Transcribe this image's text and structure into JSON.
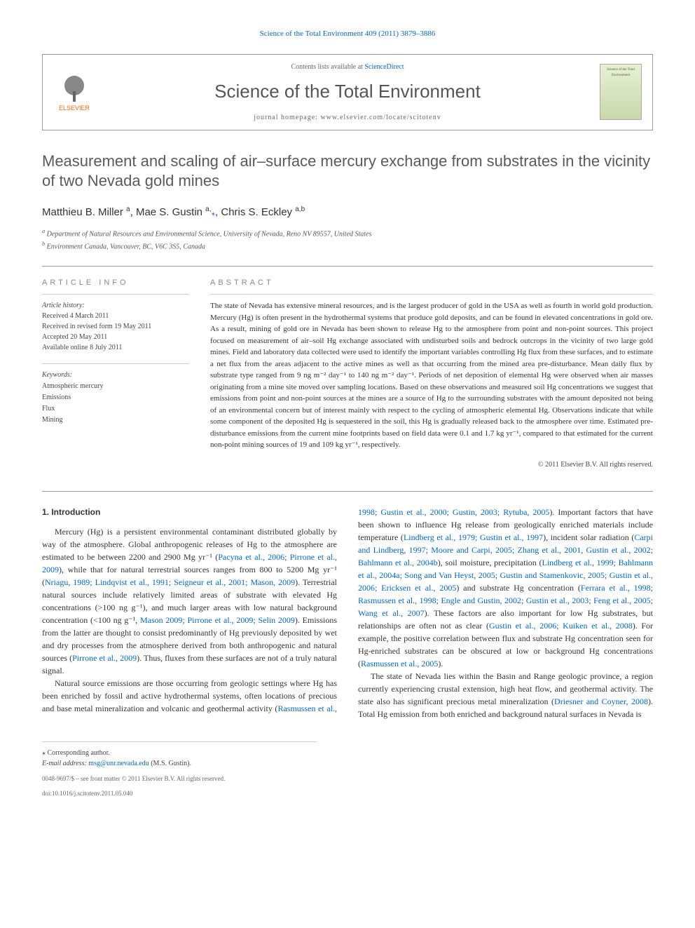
{
  "journal_ref_top": "Science of the Total Environment 409 (2011) 3879–3886",
  "header": {
    "contents_line_prefix": "Contents lists available at ",
    "contents_link": "ScienceDirect",
    "journal_name": "Science of the Total Environment",
    "homepage_prefix": "journal homepage: ",
    "homepage_url": "www.elsevier.com/locate/scitotenv",
    "elsevier_label": "ELSEVIER",
    "cover_label": "Science of the Total Environment"
  },
  "title": "Measurement and scaling of air–surface mercury exchange from substrates in the vicinity of two Nevada gold mines",
  "authors_html": "Matthieu B. Miller <sup>a</sup>, Mae S. Gustin <sup>a,</sup>*, Chris S. Eckley <sup>a,b</sup>",
  "authors": {
    "a1": "Matthieu B. Miller",
    "a1_sup": "a",
    "a2": "Mae S. Gustin",
    "a2_sup": "a,",
    "a2_corr": "⁎",
    "a3": "Chris S. Eckley",
    "a3_sup": "a,b"
  },
  "affiliations": {
    "a": "Department of Natural Resources and Environmental Science, University of Nevada, Reno NV 89557, United States",
    "b": "Environment Canada, Vancouver, BC, V6C 3S5, Canada"
  },
  "article_info_heading": "article info",
  "abstract_heading": "abstract",
  "history": {
    "label": "Article history:",
    "received": "Received 4 March 2011",
    "revised": "Received in revised form 19 May 2011",
    "accepted": "Accepted 20 May 2011",
    "online": "Available online 8 July 2011"
  },
  "keywords": {
    "label": "Keywords:",
    "items": [
      "Atmospheric mercury",
      "Emissions",
      "Flux",
      "Mining"
    ]
  },
  "abstract": "The state of Nevada has extensive mineral resources, and is the largest producer of gold in the USA as well as fourth in world gold production. Mercury (Hg) is often present in the hydrothermal systems that produce gold deposits, and can be found in elevated concentrations in gold ore. As a result, mining of gold ore in Nevada has been shown to release Hg to the atmosphere from point and non-point sources. This project focused on measurement of air–soil Hg exchange associated with undisturbed soils and bedrock outcrops in the vicinity of two large gold mines. Field and laboratory data collected were used to identify the important variables controlling Hg flux from these surfaces, and to estimate a net flux from the areas adjacent to the active mines as well as that occurring from the mined area pre-disturbance. Mean daily flux by substrate type ranged from 9 ng m⁻² day⁻¹ to 140 ng m⁻² day⁻¹. Periods of net deposition of elemental Hg were observed when air masses originating from a mine site moved over sampling locations. Based on these observations and measured soil Hg concentrations we suggest that emissions from point and non-point sources at the mines are a source of Hg to the surrounding substrates with the amount deposited not being of an environmental concern but of interest mainly with respect to the cycling of atmospheric elemental Hg. Observations indicate that while some component of the deposited Hg is sequestered in the soil, this Hg is gradually released back to the atmosphere over time. Estimated pre-disturbance emissions from the current mine footprints based on field data were 0.1 and 1.7 kg yr⁻¹, compared to that estimated for the current non-point mining sources of 19 and 109 kg yr⁻¹, respectively.",
  "copyright": "© 2011 Elsevier B.V. All rights reserved.",
  "intro_heading": "1. Introduction",
  "body": {
    "p1a": "Mercury (Hg) is a persistent environmental contaminant distributed globally by way of the atmosphere. Global anthropogenic releases of Hg to the atmosphere are estimated to be between 2200 and 2900 Mg yr⁻¹ (",
    "p1_cite1": "Pacyna et al., 2006; Pirrone et al., 2009",
    "p1b": "), while that for natural terrestrial sources ranges from 800 to 5200 Mg yr⁻¹ (",
    "p1_cite2": "Nriagu, 1989; Lindqvist et al., 1991; Seigneur et al., 2001; Mason, 2009",
    "p1c": "). Terrestrial natural sources include relatively limited areas of substrate with elevated Hg concentrations (>100 ng g⁻¹), and much larger areas with low natural background concentration (<100 ng g⁻¹, ",
    "p1_cite3": "Mason 2009; Pirrone et al., 2009; Selin 2009",
    "p1d": "). Emissions from the latter are thought to consist predominantly of Hg previously deposited by wet and dry processes from the atmosphere derived from both anthropogenic and natural sources (",
    "p1_cite4": "Pirrone et al., 2009",
    "p1e": "). Thus, fluxes from these surfaces are not of a truly natural signal.",
    "p2a": "Natural source emissions are those occurring from geologic settings where Hg has been enriched by fossil and active hydrothermal systems, often locations of precious and base metal mineralization and volcanic and geothermal activity (",
    "p2_cite1": "Rasmussen et al., 1998; Gustin et al., 2000; Gustin, 2003; Rytuba, 2005",
    "p2b": "). Important factors that have been shown to influence Hg release from geologically enriched materials include temperature (",
    "p2_cite2": "Lindberg et al., 1979; Gustin et al., 1997",
    "p2c": "), incident solar radiation (",
    "p2_cite3": "Carpi and Lindberg, 1997; Moore and Carpi, 2005; Zhang et al., 2001, Gustin et al., 2002; Bahlmann et al., 2004b",
    "p2d": "), soil moisture, precipitation (",
    "p2_cite4": "Lindberg et al., 1999; Bahlmann et al., 2004a; Song and Van Heyst, 2005; Gustin and Stamenkovic, 2005; Gustin et al., 2006; Ericksen et al., 2005",
    "p2e": ") and substrate Hg concentration (",
    "p2_cite5": "Ferrara et al., 1998; Rasmussen et al., 1998; Engle and Gustin, 2002; Gustin et al., 2003; Feng et al., 2005; Wang et al., 2007",
    "p2f": "). These factors are also important for low Hg substrates, but relationships are often not as clear (",
    "p2_cite6": "Gustin et al., 2006; Kuiken et al., 2008",
    "p2g": "). For example, the positive correlation between flux and substrate Hg concentration seen for Hg-enriched substrates can be obscured at low or background Hg concentrations (",
    "p2_cite7": "Rasmussen et al., 2005",
    "p2h": ").",
    "p3a": "The state of Nevada lies within the Basin and Range geologic province, a region currently experiencing crustal extension, high heat flow, and geothermal activity. The state also has significant precious metal mineralization (",
    "p3_cite1": "Driesner and Coyner, 2008",
    "p3b": "). Total Hg emission from both enriched and background natural surfaces in Nevada is"
  },
  "footer": {
    "corr_label": "⁎ Corresponding author.",
    "email_label": "E-mail address:",
    "email": "msg@unr.nevada.edu",
    "email_name": "(M.S. Gustin).",
    "issn_line": "0048-9697/$ – see front matter © 2011 Elsevier B.V. All rights reserved.",
    "doi": "doi:10.1016/j.scitotenv.2011.05.040"
  },
  "colors": {
    "link": "#0066cc",
    "elsevier": "#ff6600",
    "text": "#333333",
    "muted": "#888888"
  }
}
